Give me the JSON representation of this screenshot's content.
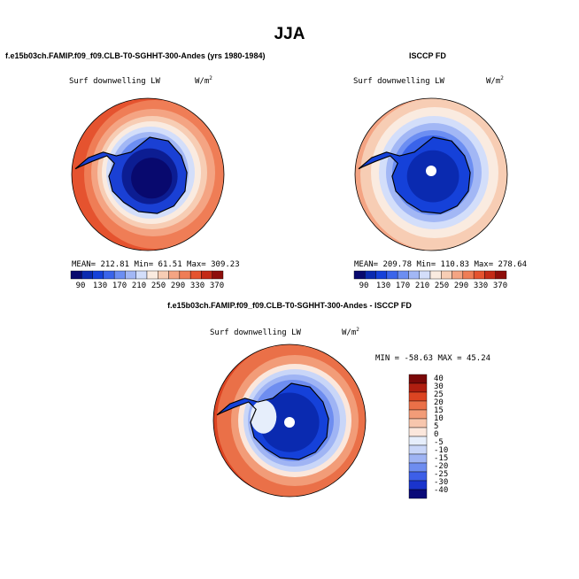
{
  "title": "JJA",
  "panels": {
    "left": {
      "title": "f.e15b03ch.FAMIP.f09_f09.CLB-T0-SGHHT-300-Andes (yrs 1980-1984)",
      "variable": "Surf downwelling LW",
      "units_base": "W/m",
      "units_exp": "2",
      "stats": "MEAN= 212.81   Min=  61.51   Max= 309.23"
    },
    "right": {
      "title": "ISCCP FD",
      "variable": "Surf downwelling LW",
      "units_base": "W/m",
      "units_exp": "2",
      "stats": "MEAN= 209.78  Min= 110.83   Max= 278.64"
    },
    "diff": {
      "title": "f.e15b03ch.FAMIP.f09_f09.CLB-T0-SGHHT-300-Andes - ISCCP FD",
      "variable": "Surf downwelling LW",
      "units_base": "W/m",
      "units_exp": "2",
      "stats": "MIN = -58.63 MAX =  45.24"
    }
  },
  "colors": {
    "abs_scale": [
      "#08096e",
      "#0a2ab0",
      "#1541d9",
      "#3a64ea",
      "#6c8ef2",
      "#a2b7f5",
      "#d3defa",
      "#faebe0",
      "#f7cdb4",
      "#f4a483",
      "#ef7d56",
      "#e5532f",
      "#c42b17",
      "#8e0e0b"
    ],
    "diff_scale": [
      "#0a0a78",
      "#1a34cc",
      "#3d5fe8",
      "#6e8df0",
      "#9fb4f4",
      "#c9d6f8",
      "#e6eefb",
      "#fbe7dc",
      "#f7c6ad",
      "#f29c78",
      "#ea7048",
      "#dc4422",
      "#b01e10",
      "#7a0808"
    ],
    "land_ice_center": "#0c1d92",
    "land_ice_mid": "#1a40d4",
    "coast": "#000000"
  },
  "chart_data": [
    {
      "type": "heatmap",
      "name": "model",
      "title": "f.e15b03ch.FAMIP.f09_f09.CLB-T0-SGHHT-300-Andes (yrs 1980-1984)",
      "variable": "Surf downwelling LW",
      "units": "W/m^2",
      "mean": 212.81,
      "min": 61.51,
      "max": 309.23,
      "colorbar_levels": [
        90,
        110,
        130,
        150,
        170,
        190,
        210,
        230,
        250,
        270,
        290,
        310,
        330,
        350,
        370
      ],
      "colorbar_labels": [
        "90",
        "130",
        "170",
        "210",
        "250",
        "290",
        "330",
        "370"
      ]
    },
    {
      "type": "heatmap",
      "name": "obs",
      "title": "ISCCP FD",
      "variable": "Surf downwelling LW",
      "units": "W/m^2",
      "mean": 209.78,
      "min": 110.83,
      "max": 278.64,
      "colorbar_levels": [
        90,
        110,
        130,
        150,
        170,
        190,
        210,
        230,
        250,
        270,
        290,
        310,
        330,
        350,
        370
      ],
      "colorbar_labels": [
        "90",
        "130",
        "170",
        "210",
        "250",
        "290",
        "330",
        "370"
      ]
    },
    {
      "type": "heatmap",
      "name": "difference",
      "title": "f.e15b03ch.FAMIP.f09_f09.CLB-T0-SGHHT-300-Andes - ISCCP FD",
      "variable": "Surf downwelling LW",
      "units": "W/m^2",
      "min": -58.63,
      "max": 45.24,
      "colorbar_labels": [
        "40",
        "30",
        "25",
        "20",
        "15",
        "10",
        "5",
        "0",
        "-5",
        "-10",
        "-15",
        "-20",
        "-25",
        "-30",
        "-40"
      ]
    }
  ]
}
